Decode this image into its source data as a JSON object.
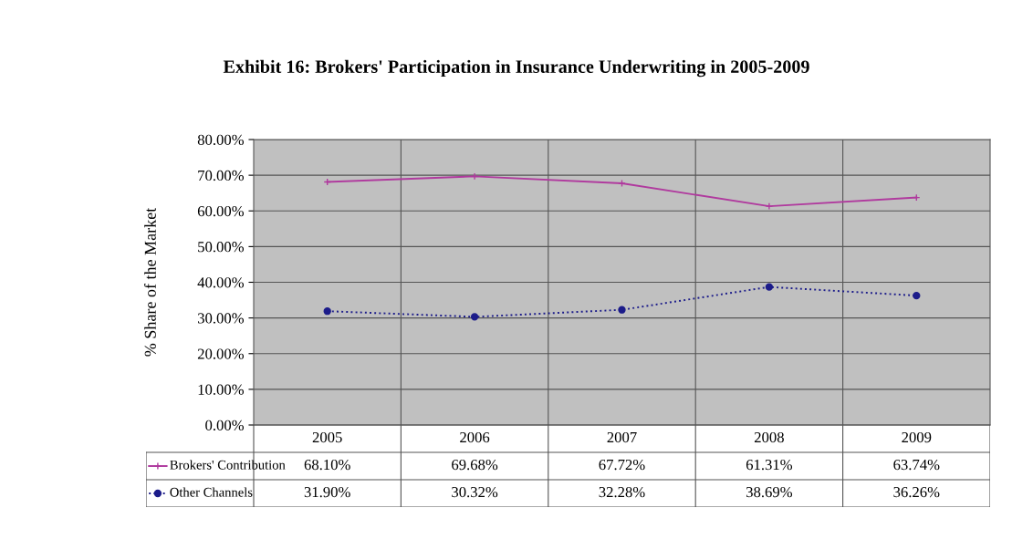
{
  "chart_data": {
    "type": "line",
    "title": "Exhibit 16: Brokers' Participation in Insurance Underwriting in 2005-2009",
    "ylabel": "% Share of the Market",
    "categories": [
      "2005",
      "2006",
      "2007",
      "2008",
      "2009"
    ],
    "series": [
      {
        "name": "Brokers' Contribution",
        "color": "#b03a9e",
        "values": [
          68.1,
          69.68,
          67.72,
          61.31,
          63.74
        ],
        "value_labels": [
          "68.10%",
          "69.68%",
          "67.72%",
          "61.31%",
          "63.74%"
        ],
        "marker": "cross",
        "line_style": "solid"
      },
      {
        "name": "Other Channels",
        "color": "#1c1c8a",
        "values": [
          31.9,
          30.32,
          32.28,
          38.69,
          36.26
        ],
        "value_labels": [
          "31.90%",
          "30.32%",
          "32.28%",
          "38.69%",
          "36.26%"
        ],
        "marker": "circle",
        "line_style": "dotted"
      }
    ],
    "ylim": [
      0,
      80
    ],
    "yticks": [
      {
        "value": 0,
        "label": "0.00%"
      },
      {
        "value": 10,
        "label": "10.00%"
      },
      {
        "value": 20,
        "label": "20.00%"
      },
      {
        "value": 30,
        "label": "30.00%"
      },
      {
        "value": 40,
        "label": "40.00%"
      },
      {
        "value": 50,
        "label": "50.00%"
      },
      {
        "value": 60,
        "label": "60.00%"
      },
      {
        "value": 70,
        "label": "70.00%"
      },
      {
        "value": 80,
        "label": "80.00%"
      }
    ],
    "grid": true,
    "legend": "bottom"
  }
}
